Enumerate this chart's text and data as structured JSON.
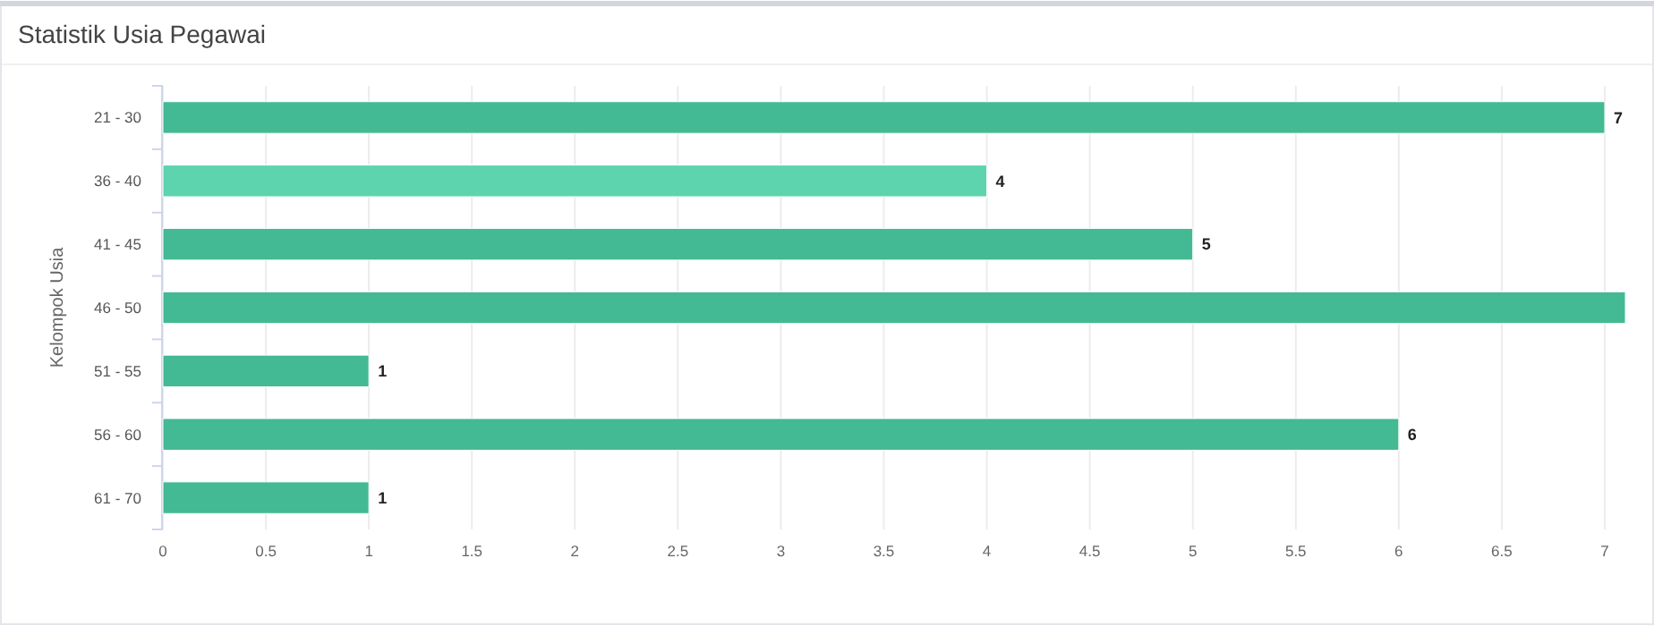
{
  "chart_data": {
    "type": "bar",
    "orientation": "horizontal",
    "title": "Statistik Usia Pegawai",
    "ylabel": "Kelompok Usia",
    "categories": [
      "21 - 30",
      "36 - 40",
      "41 - 45",
      "46 - 50",
      "51 - 55",
      "56 - 60",
      "61 - 70"
    ],
    "values": [
      7,
      4,
      5,
      7.1,
      1,
      6,
      1
    ],
    "colors": [
      "#43b994",
      "#5dd3ae",
      "#43b994",
      "#43b994",
      "#43b994",
      "#43b994",
      "#43b994"
    ],
    "value_labels": [
      "7",
      "4",
      "5",
      null,
      "1",
      "6",
      "1"
    ],
    "xlim": [
      0,
      7.1
    ],
    "xticks": [
      0,
      0.5,
      1,
      1.5,
      2,
      2.5,
      3,
      3.5,
      4,
      4.5,
      5,
      5.5,
      6,
      6.5,
      7
    ],
    "grid": "x"
  }
}
